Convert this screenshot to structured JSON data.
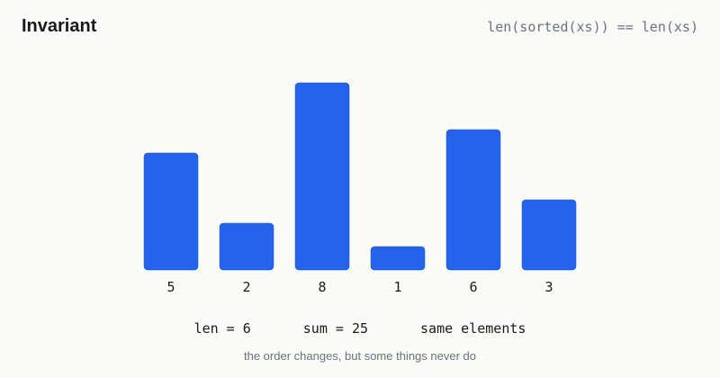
{
  "header": {
    "title": "Invariant",
    "formula": "len(sorted(xs)) == len(xs)"
  },
  "chart_data": {
    "type": "bar",
    "categories": [
      "5",
      "2",
      "8",
      "1",
      "6",
      "3"
    ],
    "values": [
      5,
      2,
      8,
      1,
      6,
      3
    ],
    "title": "",
    "xlabel": "",
    "ylabel": "",
    "ylim": [
      0,
      8
    ],
    "grid": false,
    "colors": {
      "bar": "#2563eb"
    }
  },
  "stats": {
    "len": "len = 6",
    "sum": "sum = 25",
    "elements": "same elements"
  },
  "caption": "the order changes, but some things never do"
}
